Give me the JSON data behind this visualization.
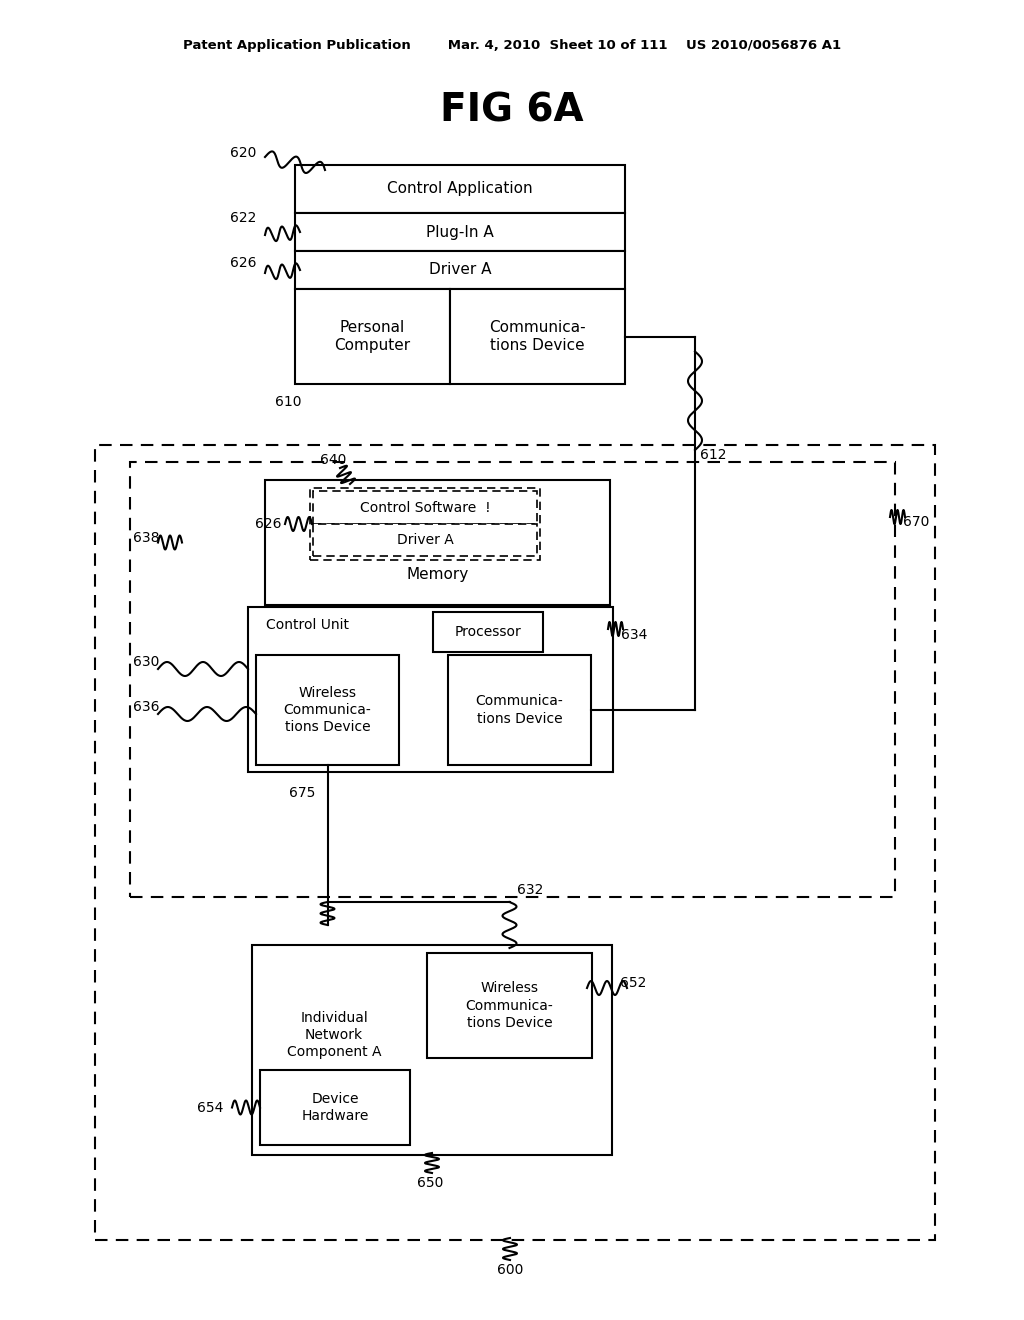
{
  "title": "FIG 6A",
  "header": "Patent Application Publication        Mar. 4, 2010  Sheet 10 of 111    US 2010/0056876 A1",
  "bg_color": "#ffffff",
  "labels": {
    "control_application": "Control Application",
    "plugin_a": "Plug-In A",
    "driver_a_top": "Driver A",
    "personal_computer": "Personal\nComputer",
    "comm_device_top": "Communica-\ntions Device",
    "control_software": "Control Software  !",
    "driver_a_mem": "Driver A",
    "memory": "Memory",
    "control_unit": "Control Unit",
    "processor": "Processor",
    "wireless_comm": "Wireless\nCommunica-\ntions Device",
    "comm_device_mid": "Communica-\ntions Device",
    "individual_network": "Individual\nNetwork\nComponent A",
    "wireless_comm2": "Wireless\nCommunica-\ntions Device",
    "device_hardware": "Device\nHardware"
  },
  "numbers": {
    "n620": "620",
    "n622": "622",
    "n626a": "626",
    "n610": "610",
    "n612": "612",
    "n640": "640",
    "n626b": "626",
    "n638": "638",
    "n670": "670",
    "n630": "630",
    "n634": "634",
    "n636": "636",
    "n675": "675",
    "n632": "632",
    "n652": "652",
    "n654": "654",
    "n650": "650",
    "n600": "600"
  }
}
